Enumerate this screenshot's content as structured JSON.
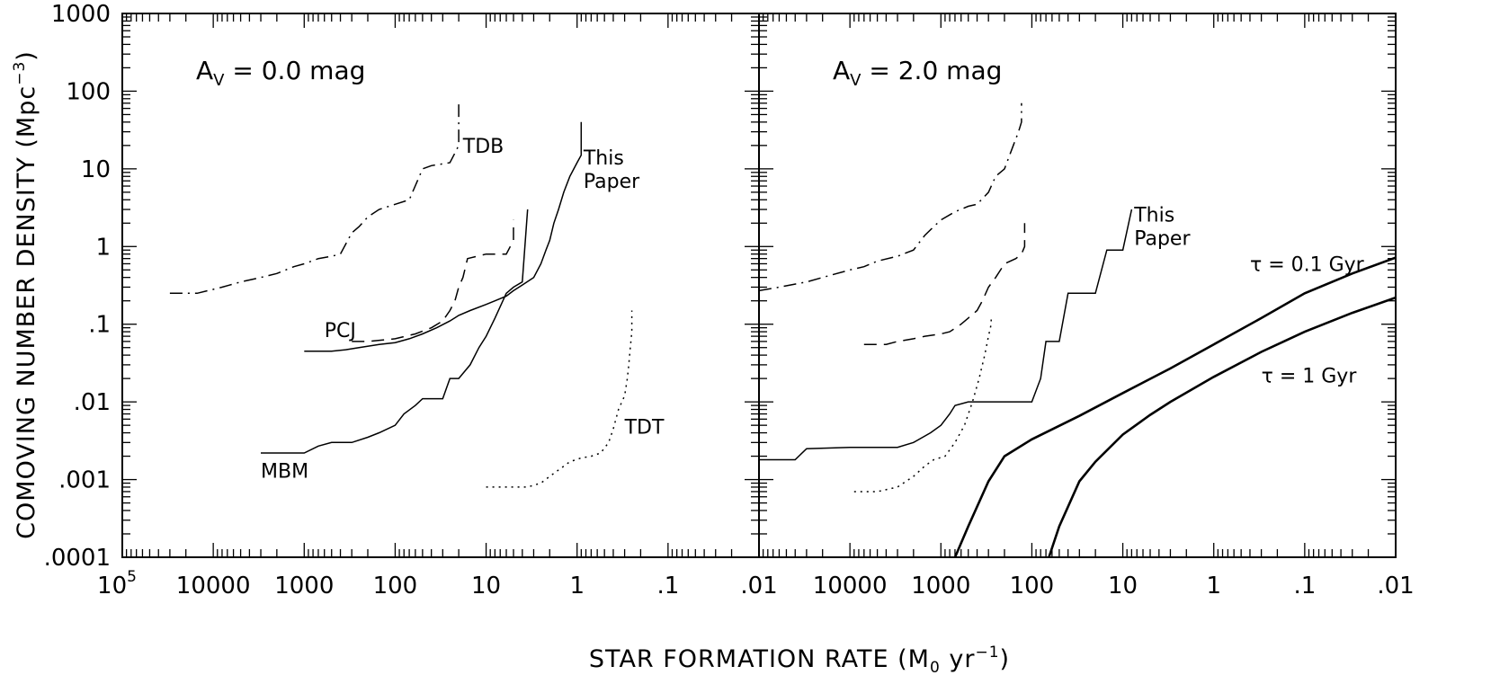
{
  "chart_data": [
    {
      "type": "line",
      "panel_label": "A",
      "panel_label_sub": "V",
      "panel_label_value": " = 0.0 mag",
      "x_scale": "log",
      "y_scale": "log",
      "xlim": [
        100000,
        0.01
      ],
      "ylim": [
        0.0001,
        1000
      ],
      "xticklabels": [
        "10^5",
        "10000",
        "1000",
        "100",
        "10",
        "1",
        ".1",
        ".01"
      ],
      "yticklabels": [
        "1000",
        "100",
        "10",
        "1",
        ".1",
        ".01",
        ".001",
        ".0001"
      ],
      "series": [
        {
          "name": "TDB",
          "style": "dashdot",
          "points": [
            [
              30000,
              0.25
            ],
            [
              15000,
              0.25
            ],
            [
              8000,
              0.3
            ],
            [
              5000,
              0.35
            ],
            [
              3000,
              0.4
            ],
            [
              2000,
              0.45
            ],
            [
              1300,
              0.55
            ],
            [
              1000,
              0.6
            ],
            [
              700,
              0.7
            ],
            [
              500,
              0.75
            ],
            [
              400,
              0.8
            ],
            [
              300,
              1.5
            ],
            [
              250,
              1.8
            ],
            [
              200,
              2.4
            ],
            [
              150,
              3.0
            ],
            [
              100,
              3.5
            ],
            [
              70,
              4.0
            ],
            [
              50,
              10
            ],
            [
              40,
              11
            ],
            [
              25,
              12
            ],
            [
              22,
              16
            ],
            [
              20,
              20
            ],
            [
              20,
              70
            ]
          ]
        },
        {
          "name": "This Paper",
          "style": "solid",
          "points": [
            [
              1000,
              0.045
            ],
            [
              500,
              0.045
            ],
            [
              350,
              0.047
            ],
            [
              250,
              0.05
            ],
            [
              150,
              0.055
            ],
            [
              100,
              0.058
            ],
            [
              70,
              0.065
            ],
            [
              50,
              0.075
            ],
            [
              35,
              0.09
            ],
            [
              25,
              0.11
            ],
            [
              20,
              0.13
            ],
            [
              15,
              0.15
            ],
            [
              10,
              0.18
            ],
            [
              8,
              0.2
            ],
            [
              6,
              0.23
            ],
            [
              5,
              0.27
            ],
            [
              4,
              0.32
            ],
            [
              3,
              0.4
            ],
            [
              2.5,
              0.6
            ],
            [
              2.2,
              0.9
            ],
            [
              2,
              1.2
            ],
            [
              1.8,
              2
            ],
            [
              1.6,
              3
            ],
            [
              1.4,
              5
            ],
            [
              1.2,
              8
            ],
            [
              1,
              12
            ],
            [
              0.9,
              15
            ],
            [
              0.9,
              40
            ]
          ]
        },
        {
          "name": "PCJ",
          "style": "dashed",
          "points": [
            [
              300,
              0.06
            ],
            [
              200,
              0.06
            ],
            [
              100,
              0.065
            ],
            [
              60,
              0.075
            ],
            [
              40,
              0.09
            ],
            [
              30,
              0.11
            ],
            [
              25,
              0.15
            ],
            [
              22,
              0.2
            ],
            [
              20,
              0.3
            ],
            [
              18,
              0.4
            ],
            [
              16,
              0.7
            ],
            [
              10,
              0.8
            ],
            [
              6,
              0.8
            ],
            [
              5,
              1.2
            ],
            [
              5,
              2.2
            ]
          ]
        },
        {
          "name": "MBM",
          "style": "solid",
          "points": [
            [
              3000,
              0.0022
            ],
            [
              1000,
              0.0022
            ],
            [
              700,
              0.0027
            ],
            [
              500,
              0.003
            ],
            [
              300,
              0.003
            ],
            [
              200,
              0.0035
            ],
            [
              150,
              0.004
            ],
            [
              100,
              0.005
            ],
            [
              80,
              0.007
            ],
            [
              60,
              0.009
            ],
            [
              50,
              0.011
            ],
            [
              30,
              0.011
            ],
            [
              25,
              0.02
            ],
            [
              20,
              0.02
            ],
            [
              15,
              0.03
            ],
            [
              12,
              0.05
            ],
            [
              10,
              0.07
            ],
            [
              8,
              0.12
            ],
            [
              6,
              0.25
            ],
            [
              5,
              0.3
            ],
            [
              4,
              0.35
            ],
            [
              3.5,
              3
            ]
          ]
        },
        {
          "name": "TDT",
          "style": "dotted",
          "points": [
            [
              10,
              0.0008
            ],
            [
              3.5,
              0.0008
            ],
            [
              2.5,
              0.0009
            ],
            [
              2,
              0.0011
            ],
            [
              1.5,
              0.0014
            ],
            [
              1.2,
              0.0017
            ],
            [
              0.9,
              0.0019
            ],
            [
              0.7,
              0.002
            ],
            [
              0.55,
              0.0022
            ],
            [
              0.45,
              0.003
            ],
            [
              0.4,
              0.0045
            ],
            [
              0.35,
              0.008
            ],
            [
              0.3,
              0.012
            ],
            [
              0.28,
              0.02
            ],
            [
              0.27,
              0.03
            ],
            [
              0.26,
              0.05
            ],
            [
              0.25,
              0.08
            ],
            [
              0.25,
              0.15
            ]
          ]
        }
      ],
      "annotations": [
        {
          "text": "TDB",
          "x": 18,
          "y": 20
        },
        {
          "text": "This",
          "x": 0.85,
          "y": 14
        },
        {
          "text": "Paper",
          "x": 0.85,
          "y": 7
        },
        {
          "text": "PCJ",
          "x": 600,
          "y": 0.085
        },
        {
          "text": "MBM",
          "x": 3000,
          "y": 0.0013
        },
        {
          "text": "TDT",
          "x": 0.3,
          "y": 0.0048
        }
      ]
    },
    {
      "type": "line",
      "panel_label": "A",
      "panel_label_sub": "V",
      "panel_label_value": " = 2.0 mag",
      "x_scale": "log",
      "y_scale": "log",
      "xlim": [
        100000,
        0.01
      ],
      "ylim": [
        0.0001,
        1000
      ],
      "xticklabels": [
        "",
        "10000",
        "1000",
        "100",
        "10",
        "1",
        ".1",
        ".01"
      ],
      "yticklabels": [],
      "series": [
        {
          "name": "TDB",
          "style": "dashdot",
          "points": [
            [
              100000,
              0.27
            ],
            [
              60000,
              0.3
            ],
            [
              30000,
              0.35
            ],
            [
              20000,
              0.4
            ],
            [
              10000,
              0.5
            ],
            [
              7000,
              0.55
            ],
            [
              5000,
              0.65
            ],
            [
              3000,
              0.75
            ],
            [
              2000,
              0.9
            ],
            [
              1500,
              1.4
            ],
            [
              1200,
              1.8
            ],
            [
              1000,
              2.2
            ],
            [
              700,
              2.8
            ],
            [
              500,
              3.3
            ],
            [
              400,
              3.5
            ],
            [
              300,
              5
            ],
            [
              250,
              8
            ],
            [
              200,
              10
            ],
            [
              160,
              20
            ],
            [
              140,
              30
            ],
            [
              130,
              40
            ],
            [
              130,
              70
            ]
          ]
        },
        {
          "name": "PCJ",
          "style": "dashed",
          "points": [
            [
              7000,
              0.055
            ],
            [
              4000,
              0.055
            ],
            [
              3000,
              0.06
            ],
            [
              2000,
              0.065
            ],
            [
              1500,
              0.07
            ],
            [
              1000,
              0.075
            ],
            [
              800,
              0.08
            ],
            [
              600,
              0.1
            ],
            [
              500,
              0.12
            ],
            [
              400,
              0.15
            ],
            [
              350,
              0.2
            ],
            [
              300,
              0.3
            ],
            [
              250,
              0.4
            ],
            [
              200,
              0.6
            ],
            [
              150,
              0.7
            ],
            [
              130,
              0.8
            ],
            [
              120,
              1.0
            ],
            [
              120,
              2.0
            ]
          ]
        },
        {
          "name": "This Paper",
          "style": "solid",
          "points": [
            [
              100000,
              0.0018
            ],
            [
              40000,
              0.0018
            ],
            [
              30000,
              0.0025
            ],
            [
              10000,
              0.0026
            ],
            [
              3000,
              0.0026
            ],
            [
              2000,
              0.003
            ],
            [
              1300,
              0.004
            ],
            [
              1000,
              0.005
            ],
            [
              800,
              0.007
            ],
            [
              700,
              0.009
            ],
            [
              500,
              0.01
            ],
            [
              100,
              0.01
            ],
            [
              80,
              0.02
            ],
            [
              70,
              0.06
            ],
            [
              50,
              0.06
            ],
            [
              40,
              0.25
            ],
            [
              20,
              0.25
            ],
            [
              15,
              0.9
            ],
            [
              10,
              0.9
            ],
            [
              8,
              3
            ]
          ]
        },
        {
          "name": "TDT",
          "style": "dotted",
          "points": [
            [
              9000,
              0.0007
            ],
            [
              5000,
              0.0007
            ],
            [
              3000,
              0.0008
            ],
            [
              2000,
              0.0011
            ],
            [
              1500,
              0.0015
            ],
            [
              1200,
              0.0018
            ],
            [
              900,
              0.002
            ],
            [
              700,
              0.003
            ],
            [
              550,
              0.005
            ],
            [
              450,
              0.01
            ],
            [
              380,
              0.02
            ],
            [
              330,
              0.04
            ],
            [
              300,
              0.07
            ],
            [
              280,
              0.1
            ],
            [
              280,
              0.13
            ]
          ]
        },
        {
          "name": "τ = 0.1 Gyr",
          "style": "thick",
          "points": [
            [
              700,
              0.0001
            ],
            [
              500,
              0.00025
            ],
            [
              300,
              0.00095
            ],
            [
              200,
              0.002
            ],
            [
              100,
              0.0033
            ],
            [
              30,
              0.0066
            ],
            [
              10,
              0.013
            ],
            [
              3,
              0.027
            ],
            [
              1,
              0.055
            ],
            [
              0.3,
              0.12
            ],
            [
              0.1,
              0.25
            ],
            [
              0.03,
              0.45
            ],
            [
              0.01,
              0.72
            ]
          ]
        },
        {
          "name": "τ = 1 Gyr",
          "style": "thick",
          "points": [
            [
              65,
              0.0001
            ],
            [
              50,
              0.00025
            ],
            [
              30,
              0.00095
            ],
            [
              20,
              0.0017
            ],
            [
              10,
              0.0038
            ],
            [
              5,
              0.0068
            ],
            [
              3,
              0.01
            ],
            [
              1,
              0.021
            ],
            [
              0.3,
              0.044
            ],
            [
              0.1,
              0.08
            ],
            [
              0.03,
              0.14
            ],
            [
              0.01,
              0.22
            ]
          ]
        }
      ],
      "annotations": [
        {
          "text": "This",
          "x": 7.5,
          "y": 2.6
        },
        {
          "text": "Paper",
          "x": 7.5,
          "y": 1.3
        },
        {
          "text": "τ = 0.1 Gyr",
          "x": 0.4,
          "y": 0.6
        },
        {
          "text": "τ = 1 Gyr",
          "x": 0.3,
          "y": 0.022
        }
      ]
    }
  ],
  "axes": {
    "xlabel_prefix": "STAR FORMATION RATE (M",
    "xlabel_sub": "0",
    "xlabel_mid": " yr",
    "xlabel_sup": "−1",
    "xlabel_suffix": ")",
    "ylabel_prefix": "COMOVING NUMBER DENSITY (Mpc",
    "ylabel_sup": "−3",
    "ylabel_suffix": ")"
  },
  "colors": {
    "ink": "#000000",
    "background": "#ffffff"
  }
}
